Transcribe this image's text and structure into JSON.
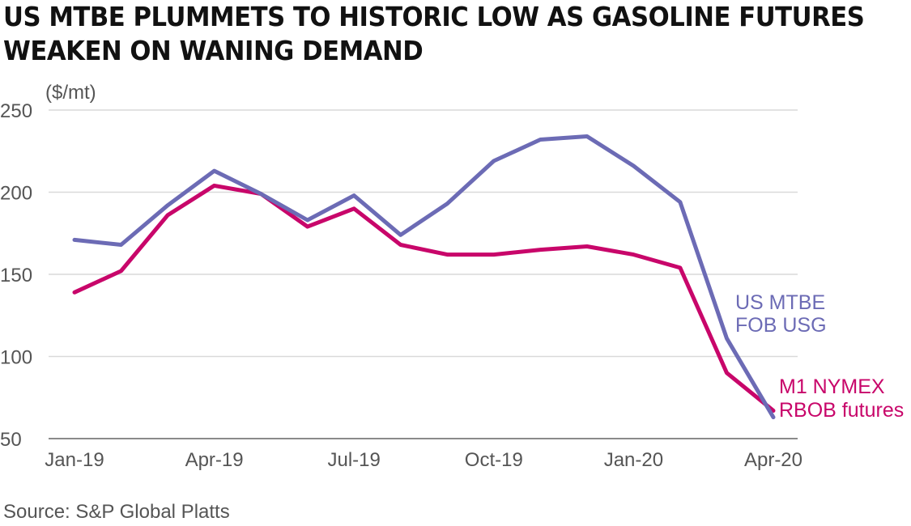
{
  "title": {
    "line1": "US MTBE PLUMMETS TO HISTORIC LOW AS GASOLINE FUTURES",
    "line2": "WEAKEN ON WANING DEMAND"
  },
  "source": "Source: S&P Global Platts",
  "colors": {
    "mtbe": "#6c6bb5",
    "rbob": "#c8066a",
    "grid": "#d9d9d9",
    "text": "#555555"
  },
  "chart_data": {
    "type": "line",
    "unit_label": "($/mt)",
    "x": [
      "Jan-19",
      "Feb-19",
      "Mar-19",
      "Apr-19",
      "May-19",
      "Jun-19",
      "Jul-19",
      "Aug-19",
      "Sep-19",
      "Oct-19",
      "Nov-19",
      "Dec-19",
      "Jan-20",
      "Feb-20",
      "Mar-20",
      "Apr-20"
    ],
    "x_tick_labels": [
      "Jan-19",
      "Apr-19",
      "Jul-19",
      "Oct-19",
      "Jan-20",
      "Apr-20"
    ],
    "y_ticks": [
      50,
      100,
      150,
      200,
      250
    ],
    "ylim": [
      50,
      250
    ],
    "grid": true,
    "series": [
      {
        "name_lines": [
          "US MTBE",
          "FOB USG"
        ],
        "color": "#6c6bb5",
        "values": [
          171,
          168,
          192,
          213,
          199,
          183,
          198,
          174,
          193,
          219,
          232,
          234,
          216,
          194,
          111,
          63
        ]
      },
      {
        "name_lines": [
          "M1 NYMEX",
          "RBOB futures"
        ],
        "color": "#c8066a",
        "values": [
          139,
          152,
          186,
          204,
          199,
          179,
          190,
          168,
          162,
          162,
          165,
          167,
          162,
          154,
          90,
          67
        ]
      }
    ]
  }
}
